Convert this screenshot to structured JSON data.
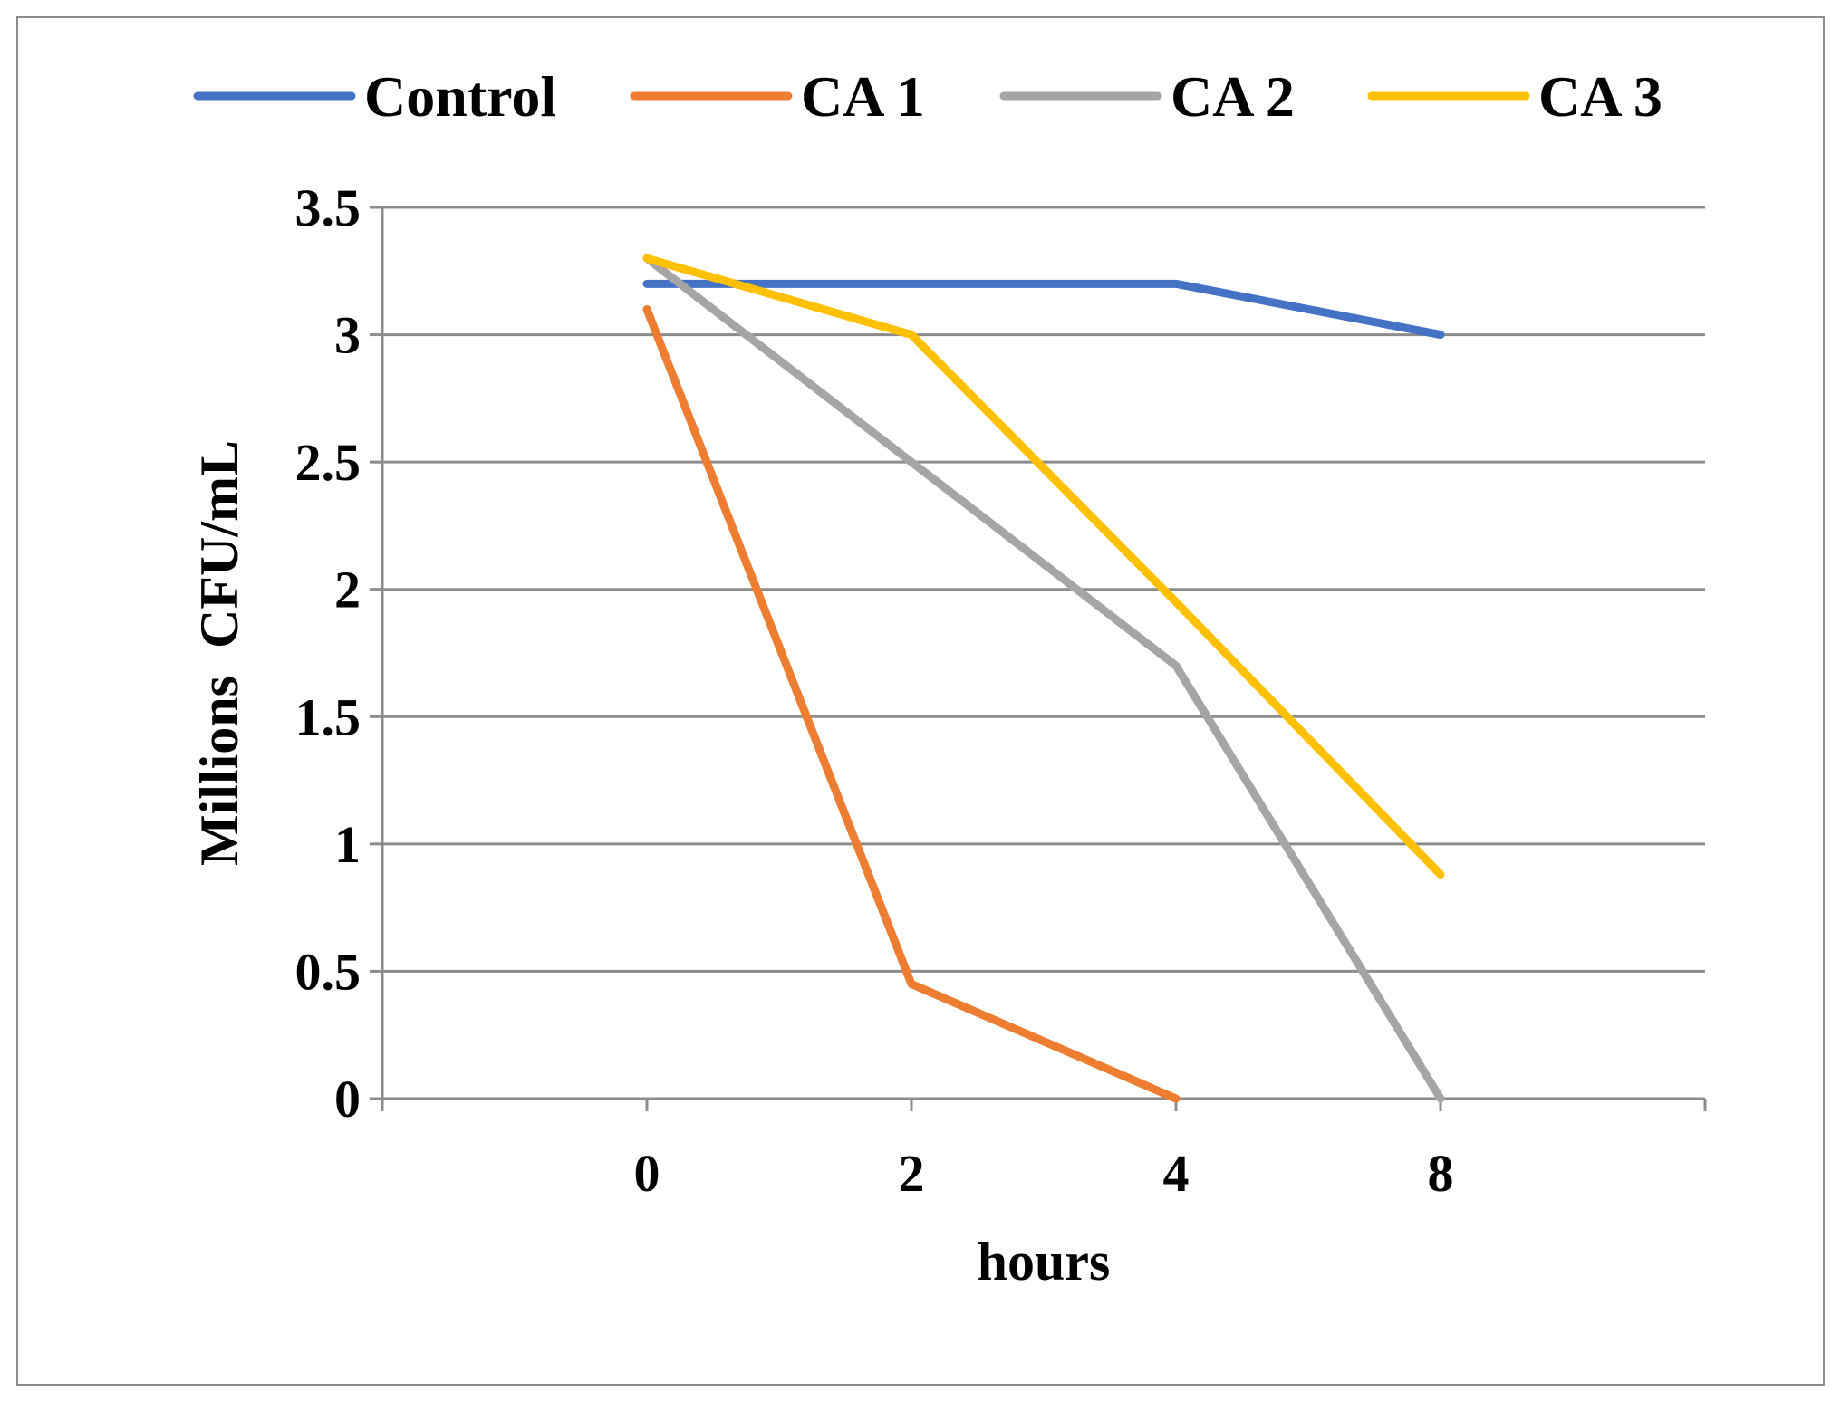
{
  "chart_data": {
    "type": "line",
    "title": "",
    "xlabel": "hours",
    "ylabel": "Millions  CFU/mL",
    "categories": [
      "0",
      "2",
      "4",
      "8"
    ],
    "ylim": [
      0,
      3.5
    ],
    "yticks": [
      0,
      0.5,
      1,
      1.5,
      2,
      2.5,
      3,
      3.5
    ],
    "ytick_labels": [
      "0",
      "0.5",
      "1",
      "1.5",
      "2",
      "2.5",
      "3",
      "3.5"
    ],
    "grid": true,
    "legend_position": "top",
    "series": [
      {
        "name": "Control",
        "color": "#4472C4",
        "values": [
          3.2,
          3.2,
          3.2,
          3.0
        ]
      },
      {
        "name": "CA 1",
        "color": "#ED7D31",
        "values": [
          3.1,
          0.45,
          0.0,
          null
        ]
      },
      {
        "name": "CA 2",
        "color": "#A5A5A5",
        "values": [
          3.3,
          2.5,
          1.7,
          0.0
        ]
      },
      {
        "name": "CA 3",
        "color": "#FFC000",
        "values": [
          3.3,
          3.0,
          1.95,
          0.88
        ]
      }
    ]
  }
}
